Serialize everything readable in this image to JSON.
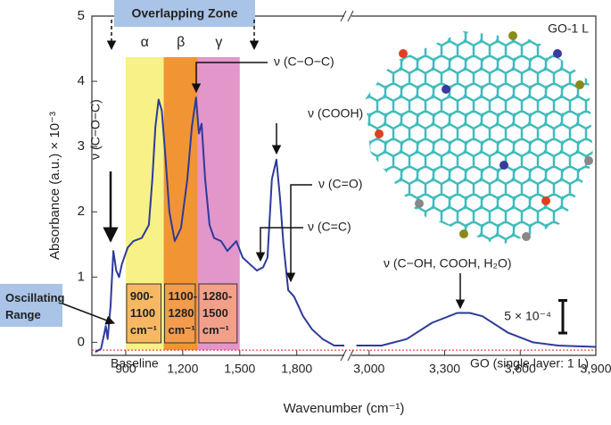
{
  "chart_data": {
    "type": "line",
    "x_label": "Wavenumber (cm⁻¹)",
    "y_label": "Absorbance (a.u.) × 10⁻³",
    "xlim": [
      722,
      3900
    ],
    "xbreak": [
      2050,
      2930
    ],
    "ylim": [
      -0.2,
      5
    ],
    "yticks": [
      0,
      1,
      2,
      3,
      4,
      5
    ],
    "xticks": [
      900,
      {
        "value": 1200,
        "label": "1,200"
      },
      {
        "value": 1500,
        "label": "1,500"
      },
      {
        "value": 1800,
        "label": "1,800"
      },
      {
        "value": 3000,
        "label": "3,000"
      },
      {
        "value": 3300,
        "label": "3,300"
      },
      {
        "value": 3600,
        "label": "3,600"
      },
      {
        "value": 3900,
        "label": "3,900"
      }
    ],
    "x": [
      740,
      770,
      785,
      795,
      805,
      820,
      835,
      850,
      865,
      880,
      910,
      940,
      985,
      1022,
      1040,
      1056,
      1073,
      1090,
      1110,
      1130,
      1158,
      1191,
      1224,
      1248,
      1270,
      1285,
      1299,
      1318,
      1341,
      1365,
      1402,
      1435,
      1482,
      1515,
      1552,
      1590,
      1623,
      1646,
      1669,
      1693,
      1712,
      1730,
      1755,
      1786,
      1833,
      1880,
      1936,
      1997,
      2050,
      null,
      2950,
      3050,
      3150,
      3250,
      3350,
      3400,
      3450,
      3550,
      3650,
      3750,
      3900
    ],
    "series": [
      {
        "name": "GO-1 L",
        "color": "#2e3a9c",
        "values": [
          -0.15,
          -0.1,
          0.1,
          0.25,
          0.05,
          0.55,
          1.4,
          1.1,
          1.0,
          1.2,
          1.45,
          1.55,
          1.6,
          1.8,
          2.5,
          3.3,
          3.72,
          3.55,
          2.8,
          2.0,
          1.55,
          1.75,
          2.5,
          3.3,
          3.75,
          3.2,
          3.35,
          2.5,
          1.8,
          1.6,
          1.55,
          1.4,
          1.55,
          1.3,
          1.2,
          1.1,
          1.15,
          1.3,
          2.5,
          2.8,
          2.2,
          1.5,
          0.8,
          0.7,
          0.4,
          0.2,
          0.05,
          -0.05,
          -0.05,
          null,
          -0.05,
          -0.05,
          0.05,
          0.3,
          0.45,
          0.45,
          0.4,
          0.15,
          0.0,
          -0.05,
          -0.07
        ]
      }
    ],
    "baseline": -0.12,
    "baseline_label": "Baseline",
    "sample_label": "GO-1 L",
    "layer_label": "GO (single layer: 1 L)",
    "scale_bar": {
      "label": "5 × 10⁻⁴",
      "value": 0.5
    },
    "zone_label": "Overlapping Zone",
    "oscillating_label": "Oscillating Range",
    "bands": [
      {
        "symbol": "α",
        "range": "900-1100 cm⁻¹",
        "from": 900,
        "to": 1100,
        "color": "#f7f07a",
        "box_color": "#f6b862"
      },
      {
        "symbol": "β",
        "range": "1100-1280 cm⁻¹",
        "from": 1100,
        "to": 1280,
        "color": "#f08a1e",
        "box_color": "#f29c4c"
      },
      {
        "symbol": "γ",
        "range": "1280-1500 cm⁻¹",
        "from": 1280,
        "to": 1500,
        "color": "#e08bc4",
        "box_color": "#f2a08a"
      }
    ],
    "annotations": [
      "ν (C−O−C)",
      "ν (C−O−C)",
      "ν (COOH)",
      "ν (C=O)",
      "ν (C=C)",
      "ν (C−OH, COOH, H₂O)"
    ]
  }
}
